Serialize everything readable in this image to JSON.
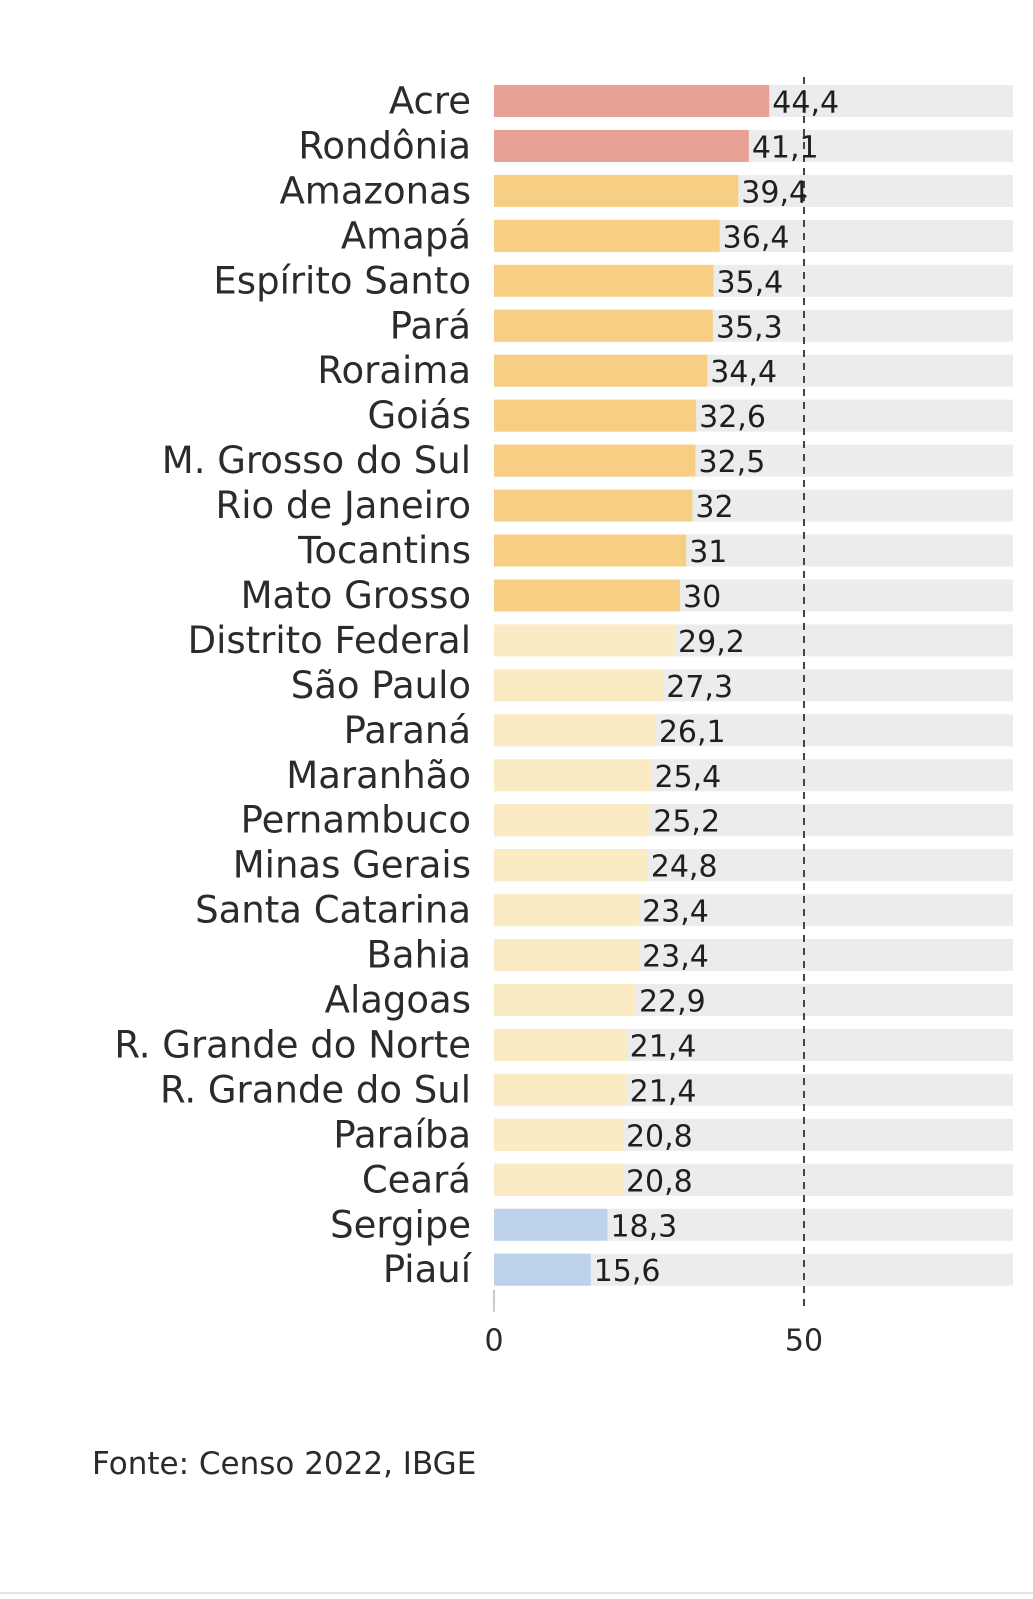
{
  "chart_data": {
    "type": "bar",
    "orientation": "horizontal",
    "title": "",
    "xlabel": "",
    "ylabel": "",
    "xlim": [
      0,
      83
    ],
    "reference_line": 50,
    "x_ticks": [
      "0",
      "50"
    ],
    "categories": [
      "Acre",
      "Rondônia",
      "Amazonas",
      "Amapá",
      "Espírito Santo",
      "Pará",
      "Roraima",
      "Goiás",
      "M. Grosso do Sul",
      "Rio de Janeiro",
      "Tocantins",
      "Mato Grosso",
      "Distrito Federal",
      "São Paulo",
      "Paraná",
      "Maranhão",
      "Pernambuco",
      "Minas Gerais",
      "Santa Catarina",
      "Bahia",
      "Alagoas",
      "R. Grande do Norte",
      "R. Grande do Sul",
      "Paraíba",
      "Ceará",
      "Sergipe",
      "Piauí"
    ],
    "values": [
      44.4,
      41.1,
      39.4,
      36.4,
      35.4,
      35.3,
      34.4,
      32.6,
      32.5,
      32,
      31,
      30,
      29.2,
      27.3,
      26.1,
      25.4,
      25.2,
      24.8,
      23.4,
      23.4,
      22.9,
      21.4,
      21.4,
      20.8,
      20.8,
      18.3,
      15.6
    ],
    "value_labels": [
      "44,4",
      "41,1",
      "39,4",
      "36,4",
      "35,4",
      "35,3",
      "34,4",
      "32,6",
      "32,5",
      "32",
      "31",
      "30",
      "29,2",
      "27,3",
      "26,1",
      "25,4",
      "25,2",
      "24,8",
      "23,4",
      "23,4",
      "22,9",
      "21,4",
      "21,4",
      "20,8",
      "20,8",
      "18,3",
      "15,6"
    ],
    "color_group": [
      "high",
      "high",
      "mid",
      "mid",
      "mid",
      "mid",
      "mid",
      "mid",
      "mid",
      "mid",
      "mid",
      "mid",
      "low",
      "low",
      "low",
      "low",
      "low",
      "low",
      "low",
      "low",
      "low",
      "low",
      "low",
      "low",
      "low",
      "lowest",
      "lowest"
    ],
    "colors": {
      "high": "#e8a195",
      "mid": "#f6cf85",
      "low": "#fbebc4",
      "lowest": "#bcd1ea",
      "track": "#ecebed",
      "refline": "#444444"
    }
  },
  "source": "Fonte: Censo 2022, IBGE"
}
